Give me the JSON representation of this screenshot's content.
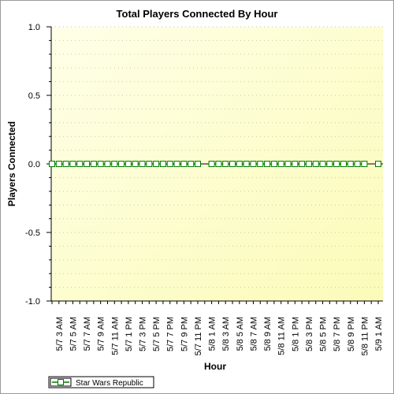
{
  "chart_data": {
    "type": "line",
    "title": "Total Players Connected By Hour",
    "xlabel": "Hour",
    "ylabel": "Players Connected",
    "ylim": [
      -1.0,
      1.0
    ],
    "y_ticks": [
      "1.0",
      "0.5",
      "0.0",
      "-0.5",
      "-1.0"
    ],
    "y_tick_values": [
      1.0,
      0.5,
      0.0,
      -0.5,
      -1.0
    ],
    "grid": true,
    "legend_position": "bottom-left",
    "plot_background": [
      "#ffffe8",
      "#fbfbb8"
    ],
    "x_labels": [
      "5/7 3 AM",
      "5/7 5 AM",
      "5/7 7 AM",
      "5/7 9 AM",
      "5/7 11 AM",
      "5/7 1 PM",
      "5/7 3 PM",
      "5/7 5 PM",
      "5/7 7 PM",
      "5/7 9 PM",
      "5/7 11 PM",
      "5/8 1 AM",
      "5/8 3 AM",
      "5/8 5 AM",
      "5/8 7 AM",
      "5/8 9 AM",
      "5/8 11 AM",
      "5/8 1 PM",
      "5/8 3 PM",
      "5/8 5 PM",
      "5/8 7 PM",
      "5/8 9 PM",
      "5/8 11 PM",
      "5/9 1 AM"
    ],
    "series": [
      {
        "name": "Star Wars Republic",
        "color": "#007a00",
        "marker_fill": "#ffffff",
        "x": [
          "5/7 2 AM",
          "5/7 3 AM",
          "5/7 4 AM",
          "5/7 5 AM",
          "5/7 6 AM",
          "5/7 7 AM",
          "5/7 8 AM",
          "5/7 9 AM",
          "5/7 10 AM",
          "5/7 11 AM",
          "5/7 12 PM",
          "5/7 1 PM",
          "5/7 2 PM",
          "5/7 3 PM",
          "5/7 4 PM",
          "5/7 5 PM",
          "5/7 6 PM",
          "5/7 7 PM",
          "5/7 8 PM",
          "5/7 9 PM",
          "5/7 10 PM",
          "5/7 11 PM",
          "5/8 1 AM",
          "5/8 2 AM",
          "5/8 3 AM",
          "5/8 4 AM",
          "5/8 5 AM",
          "5/8 6 AM",
          "5/8 7 AM",
          "5/8 8 AM",
          "5/8 9 AM",
          "5/8 10 AM",
          "5/8 11 AM",
          "5/8 12 PM",
          "5/8 1 PM",
          "5/8 2 PM",
          "5/8 3 PM",
          "5/8 4 PM",
          "5/8 5 PM",
          "5/8 6 PM",
          "5/8 7 PM",
          "5/8 8 PM",
          "5/8 9 PM",
          "5/8 10 PM",
          "5/8 11 PM",
          "5/9 1 AM"
        ],
        "values": [
          0,
          0,
          0,
          0,
          0,
          0,
          0,
          0,
          0,
          0,
          0,
          0,
          0,
          0,
          0,
          0,
          0,
          0,
          0,
          0,
          0,
          0,
          0,
          0,
          0,
          0,
          0,
          0,
          0,
          0,
          0,
          0,
          0,
          0,
          0,
          0,
          0,
          0,
          0,
          0,
          0,
          0,
          0,
          0,
          0,
          0
        ]
      }
    ]
  }
}
